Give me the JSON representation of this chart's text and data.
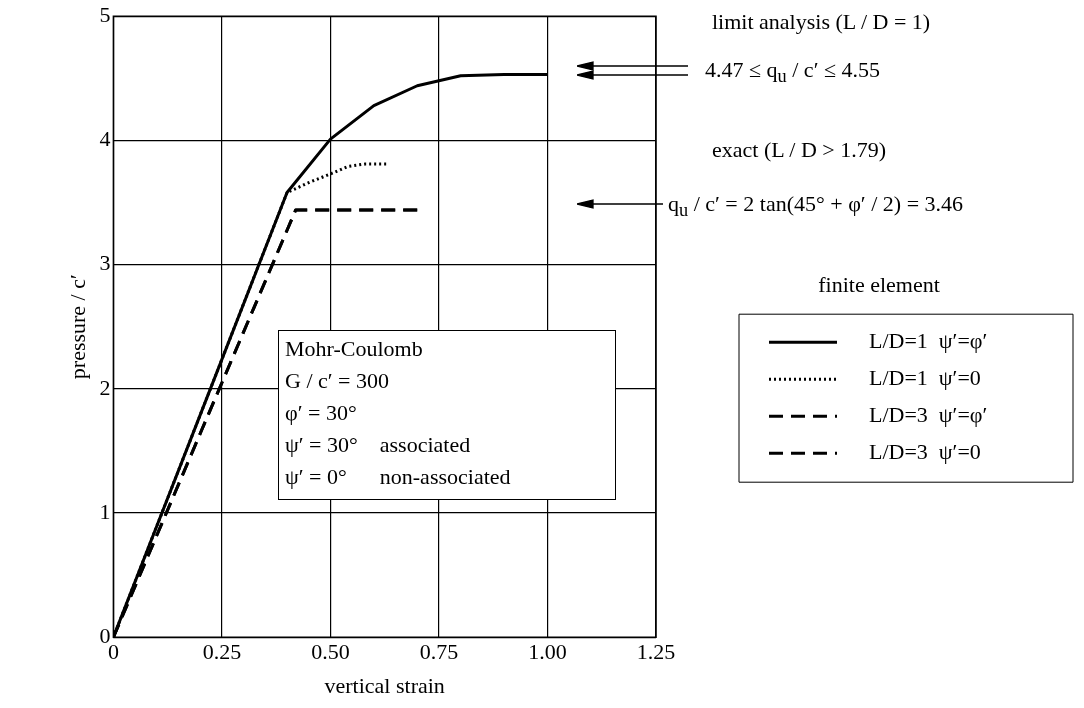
{
  "chart_data": {
    "type": "line",
    "xlabel": "vertical strain",
    "ylabel": "pressure / c′",
    "legend_title": "finite element",
    "legend": "right",
    "grid": true,
    "marker": "none",
    "xlim": [
      0,
      1.25
    ],
    "xticks": [
      0,
      {
        "value": 0.25,
        "label": "0.25"
      },
      {
        "value": 0.5,
        "label": "0.50"
      },
      {
        "value": 0.75,
        "label": "0.75"
      },
      {
        "value": 1,
        "label": "1.00"
      },
      {
        "value": 1.25,
        "label": "1.25"
      }
    ],
    "ylim": [
      0,
      5
    ],
    "yticks": [
      0,
      1,
      2,
      3,
      4,
      5
    ],
    "series": [
      {
        "name": "L/D=1  ψ′=φ′",
        "color": "#000000",
        "line_style": "solid",
        "x": [
          0,
          0.2,
          0.4,
          0.5,
          0.6,
          0.7,
          0.8,
          0.9,
          1.0
        ],
        "values": [
          0,
          1.79,
          3.58,
          4.01,
          4.28,
          4.44,
          4.52,
          4.53,
          4.53
        ]
      },
      {
        "name": "L/D=1  ψ′=0",
        "color": "#000000",
        "line_style": "dotted",
        "x": [
          0,
          0.2,
          0.4,
          0.45,
          0.5,
          0.54,
          0.58,
          0.63
        ],
        "values": [
          0,
          1.79,
          3.58,
          3.66,
          3.73,
          3.79,
          3.81,
          3.81
        ]
      },
      {
        "name": "L/D=3  ψ′=φ′",
        "color": "#000000",
        "line_style": "dashed",
        "x": [
          0,
          0.2,
          0.42,
          0.5,
          0.6,
          0.7
        ],
        "values": [
          0,
          1.64,
          3.44,
          3.44,
          3.44,
          3.44
        ]
      },
      {
        "name": "L/D=3  ψ′=0",
        "color": "#000000",
        "line_style": "dashed",
        "x": [
          0,
          0.2,
          0.42,
          0.5,
          0.6,
          0.7
        ],
        "values": [
          0,
          1.64,
          3.44,
          3.44,
          3.44,
          3.44
        ]
      }
    ],
    "annotations": [
      "limit analysis (L / D = 1)",
      "4.47 ≤ q$_{u}$ / c′ ≤ 4.55",
      "exact (L / D > 1.79)",
      "q$_{u}$ / c′ = 2 tan(45° + φ′ / 2) = 3.46",
      "Mohr-Coulomb",
      "G / c′ = 300",
      "φ′ = 30°",
      "ψ′ = 30°    associated",
      "ψ′ = 0°      non-associated"
    ]
  }
}
